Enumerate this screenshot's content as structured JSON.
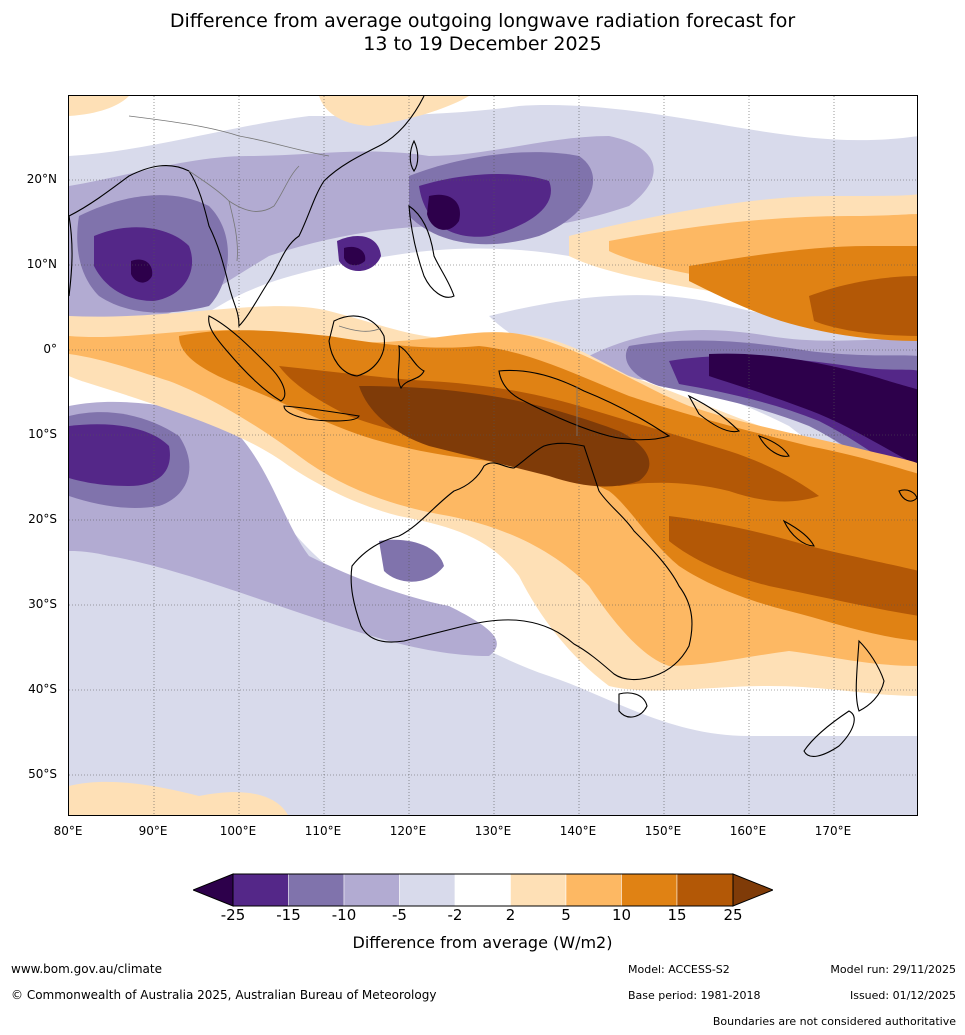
{
  "title_line1": "Difference from average outgoing longwave radiation forecast for",
  "title_line2": "13 to 19 December 2025",
  "map": {
    "lat_labels": [
      "20°N",
      "10°N",
      "0°",
      "10°S",
      "20°S",
      "30°S",
      "40°S",
      "50°S"
    ],
    "lon_labels": [
      "80°E",
      "90°E",
      "100°E",
      "110°E",
      "120°E",
      "130°E",
      "140°E",
      "150°E",
      "160°E",
      "170°E"
    ]
  },
  "legend": {
    "title": "Difference from average (W/m2)",
    "ticks": [
      "-25",
      "-15",
      "-10",
      "-5",
      "-2",
      "2",
      "5",
      "10",
      "15",
      "25"
    ],
    "colors": [
      "#2d004b",
      "#542788",
      "#8073ac",
      "#b2abd2",
      "#d8daeb",
      "#ffffff",
      "#fee0b6",
      "#fdb863",
      "#e08214",
      "#b35806",
      "#7f3b08"
    ]
  },
  "footer": {
    "website": "www.bom.gov.au/climate",
    "copyright": "© Commonwealth of Australia 2025, Australian Bureau of Meteorology",
    "model": "Model: ACCESS-S2",
    "base_period": "Base period: 1981-2018",
    "model_run": "Model run: 29/11/2025",
    "issued": "Issued: 01/12/2025",
    "disclaimer": "Boundaries are not considered authoritative"
  }
}
